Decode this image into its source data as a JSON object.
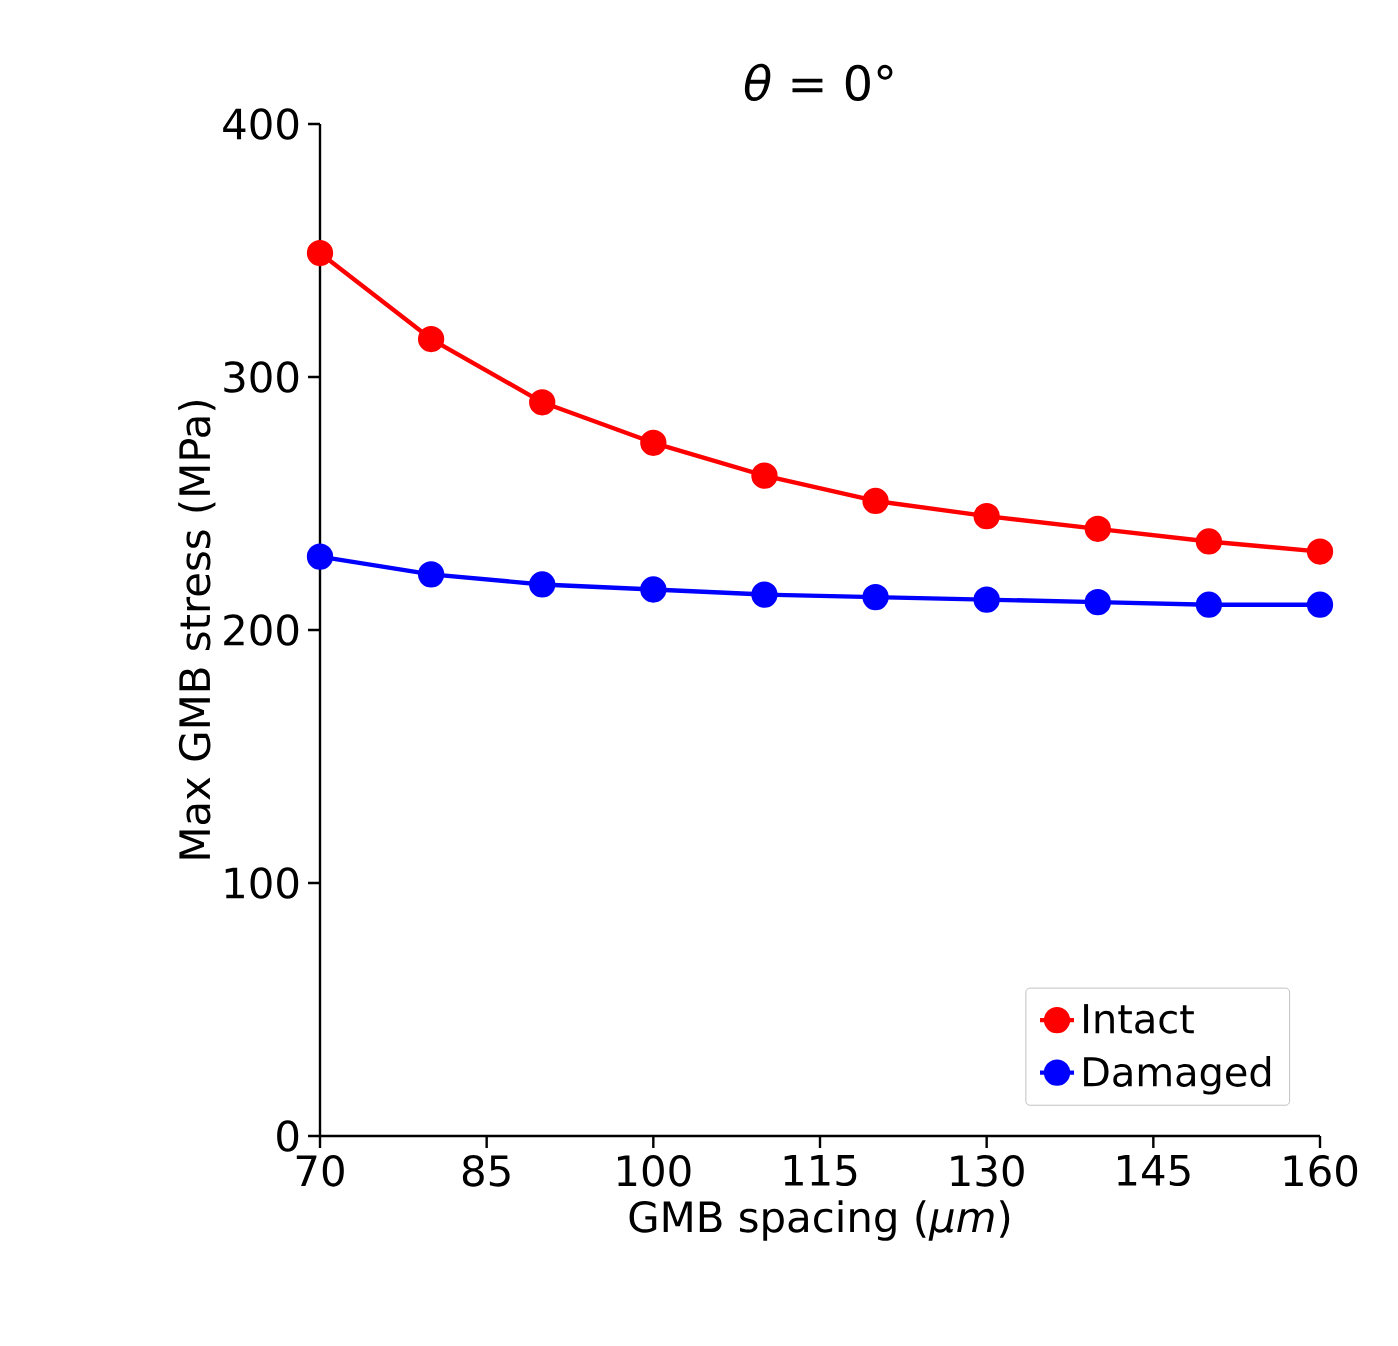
{
  "chart_data": {
    "type": "line",
    "title": "*θ* = 0°",
    "xlabel": "GMB spacing (*μm*)",
    "ylabel": "Max GMB stress (MPa)",
    "x": [
      70,
      80,
      90,
      100,
      110,
      120,
      130,
      140,
      150,
      160
    ],
    "series": [
      {
        "name": "Intact",
        "color": "#ff0000",
        "values": [
          349,
          315,
          290,
          274,
          261,
          251,
          245,
          240,
          235,
          231
        ]
      },
      {
        "name": "Damaged",
        "color": "#0000ff",
        "values": [
          229,
          222,
          218,
          216,
          214,
          213,
          212,
          211,
          210,
          210
        ]
      }
    ],
    "xlim": [
      70,
      160
    ],
    "ylim": [
      0,
      400
    ],
    "xticks": [
      70,
      85,
      100,
      115,
      130,
      145,
      160
    ],
    "yticks": [
      0,
      100,
      200,
      300,
      400
    ],
    "grid": false,
    "legend": "bottom right",
    "marker": "circle",
    "line_style": "solid"
  }
}
